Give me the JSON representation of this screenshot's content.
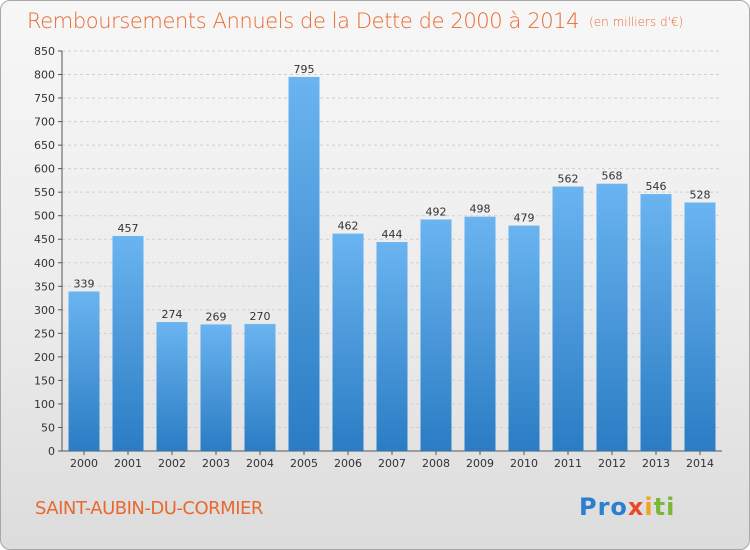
{
  "title": "Remboursements Annuels de la Dette de 2000 à 2014",
  "subtitle": "(en milliers d'€)",
  "location": "SAINT-AUBIN-DU-CORMIER",
  "logo": {
    "part1": "Pro",
    "part2": "x",
    "part3": "i",
    "part4": "ti"
  },
  "colors": {
    "title": "#e8682e",
    "bar_light": "#6ab4f0",
    "bar_dark": "#2a7cc4",
    "grid": "#cfcfcf"
  },
  "chart_data": {
    "type": "bar",
    "categories": [
      "2000",
      "2001",
      "2002",
      "2003",
      "2004",
      "2005",
      "2006",
      "2007",
      "2008",
      "2009",
      "2010",
      "2011",
      "2012",
      "2013",
      "2014"
    ],
    "values": [
      339,
      457,
      274,
      269,
      270,
      795,
      462,
      444,
      492,
      498,
      479,
      562,
      568,
      546,
      528
    ],
    "ylim": [
      0,
      850
    ],
    "yticks": [
      0,
      50,
      100,
      150,
      200,
      250,
      300,
      350,
      400,
      450,
      500,
      550,
      600,
      650,
      700,
      750,
      800,
      850
    ],
    "grid": true,
    "data_labels": true
  }
}
